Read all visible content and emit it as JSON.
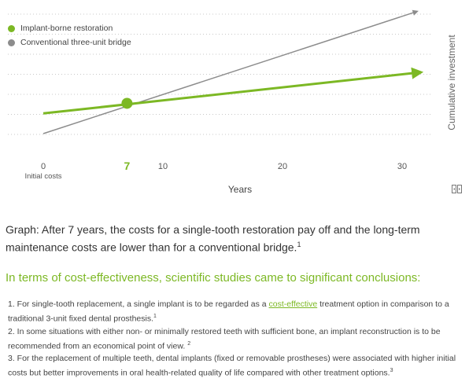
{
  "legend": {
    "implant_label": "Implant-borne restoration",
    "bridge_label": "Conventional three-unit bridge",
    "implant_color": "#7cb824",
    "bridge_color": "#8c8c8c"
  },
  "chart_data": {
    "type": "line",
    "xlabel": "Years",
    "ylabel": "Cumulative investment",
    "xlim": [
      0,
      33
    ],
    "x_ticks": [
      {
        "value": 0,
        "label": "0",
        "sublabel": "Initial costs"
      },
      {
        "value": 7,
        "label": "7",
        "highlight": true
      },
      {
        "value": 10,
        "label": "10"
      },
      {
        "value": 20,
        "label": "20"
      },
      {
        "value": 30,
        "label": "30"
      }
    ],
    "grid": "horizontal dotted",
    "series": [
      {
        "name": "Implant-borne restoration",
        "color": "#7cb824",
        "x": [
          0,
          7,
          31
        ],
        "y": [
          1.0,
          1.5,
          3.0
        ]
      },
      {
        "name": "Conventional three-unit bridge",
        "color": "#8c8c8c",
        "x": [
          0,
          7,
          31
        ],
        "y": [
          0.0,
          1.5,
          6.0
        ]
      }
    ],
    "intersection": {
      "x": 7,
      "y": 1.5
    },
    "ylim": [
      0,
      6
    ]
  },
  "caption": {
    "text": "Graph: After 7 years, the costs for a single-tooth restoration pay off and the long-term maintenance costs are lower than for a conventional bridge.",
    "ref": "1"
  },
  "heading": "In terms of cost-effectiveness, scientific studies came to significant conclusions:",
  "points": [
    {
      "pre": "1. For single-tooth replacement, a single implant is to be regarded as a ",
      "link": "cost-effective",
      "post": " treatment option in comparison to a traditional 3-unit fixed dental prosthesis.",
      "ref": "1"
    },
    {
      "pre": "2. In some situations with either non- or minimally restored teeth with sufficient bone, an implant reconstruction is to be recommended from an economical point of view. ",
      "link": "",
      "post": "",
      "ref": "2"
    },
    {
      "pre": "3. For the replacement of multiple teeth, dental implants (fixed or removable prostheses) were associated with higher initial costs but better improvements in oral health-related quality of life compared with other treatment options.",
      "link": "",
      "post": "",
      "ref": "3"
    }
  ]
}
